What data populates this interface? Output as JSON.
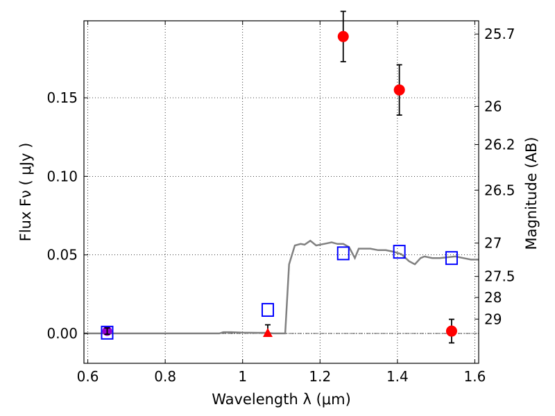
{
  "chart_data": {
    "type": "scatter",
    "xlabel": "Wavelength  λ (μm)",
    "ylabel": "Flux  Fν  ( μJy )",
    "y2label": "Magnitude (AB)",
    "xlim": [
      0.59,
      1.61
    ],
    "ylim": [
      -0.019,
      0.199
    ],
    "grid": true,
    "x_ticks": [
      {
        "value": 0.6,
        "label": "0.6"
      },
      {
        "value": 0.8,
        "label": "0.8"
      },
      {
        "value": 1.0,
        "label": "1"
      },
      {
        "value": 1.2,
        "label": "1.2"
      },
      {
        "value": 1.4,
        "label": "1.4"
      },
      {
        "value": 1.6,
        "label": "1.6"
      }
    ],
    "y_ticks": [
      {
        "value": 0.0,
        "label": "0.00"
      },
      {
        "value": 0.05,
        "label": "0.05"
      },
      {
        "value": 0.1,
        "label": "0.10"
      },
      {
        "value": 0.15,
        "label": "0.15"
      }
    ],
    "y2_ticks": [
      {
        "mag": 25.7,
        "label": "25.7"
      },
      {
        "mag": 26,
        "label": "26"
      },
      {
        "mag": 26.2,
        "label": "26.2"
      },
      {
        "mag": 26.5,
        "label": "26.5"
      },
      {
        "mag": 27,
        "label": "27"
      },
      {
        "mag": 27.5,
        "label": "27.5"
      },
      {
        "mag": 28,
        "label": "28"
      },
      {
        "mag": 29,
        "label": "29"
      }
    ],
    "model_spectrum": {
      "color": "#808080",
      "points": [
        [
          0.59,
          0.0
        ],
        [
          0.7,
          0.0
        ],
        [
          0.8,
          0.0
        ],
        [
          0.9,
          0.0
        ],
        [
          0.94,
          0.0
        ],
        [
          0.95,
          0.0008
        ],
        [
          0.97,
          0.0008
        ],
        [
          1.0,
          0.0005
        ],
        [
          1.04,
          0.0004
        ],
        [
          1.06,
          0.0004
        ],
        [
          1.08,
          0.0
        ],
        [
          1.1,
          0.0
        ],
        [
          1.11,
          0.0
        ],
        [
          1.12,
          0.044
        ],
        [
          1.135,
          0.056
        ],
        [
          1.15,
          0.057
        ],
        [
          1.16,
          0.0565
        ],
        [
          1.175,
          0.059
        ],
        [
          1.19,
          0.056
        ],
        [
          1.21,
          0.057
        ],
        [
          1.23,
          0.058
        ],
        [
          1.245,
          0.057
        ],
        [
          1.26,
          0.057
        ],
        [
          1.275,
          0.055
        ],
        [
          1.29,
          0.048
        ],
        [
          1.3,
          0.054
        ],
        [
          1.33,
          0.054
        ],
        [
          1.35,
          0.053
        ],
        [
          1.37,
          0.053
        ],
        [
          1.39,
          0.052
        ],
        [
          1.41,
          0.0505
        ],
        [
          1.43,
          0.046
        ],
        [
          1.445,
          0.044
        ],
        [
          1.46,
          0.048
        ],
        [
          1.47,
          0.049
        ],
        [
          1.49,
          0.048
        ],
        [
          1.51,
          0.048
        ],
        [
          1.53,
          0.0485
        ],
        [
          1.55,
          0.049
        ],
        [
          1.57,
          0.048
        ],
        [
          1.59,
          0.047
        ],
        [
          1.61,
          0.047
        ]
      ]
    },
    "model_band_fluxes": {
      "color": "#0000ff",
      "points": [
        {
          "x": 0.65,
          "y": 0.0005
        },
        {
          "x": 1.065,
          "y": 0.015
        },
        {
          "x": 1.26,
          "y": 0.051
        },
        {
          "x": 1.405,
          "y": 0.052
        },
        {
          "x": 1.54,
          "y": 0.048
        }
      ]
    },
    "observed_detections": {
      "color": "#ff0000",
      "points": [
        {
          "x": 1.26,
          "y": 0.189,
          "err": 0.016
        },
        {
          "x": 1.405,
          "y": 0.155,
          "err": 0.016
        },
        {
          "x": 1.54,
          "y": 0.0015,
          "err": 0.0075
        }
      ]
    },
    "observed_upper_limit": {
      "color": "#ff0000",
      "points": [
        {
          "x": 1.065,
          "y": 0.0,
          "err_up": 0.0055
        }
      ]
    },
    "observed_optical": {
      "color": "#9400d3",
      "points": [
        {
          "x": 0.65,
          "y": 0.0015,
          "err": 0.002
        }
      ]
    }
  }
}
